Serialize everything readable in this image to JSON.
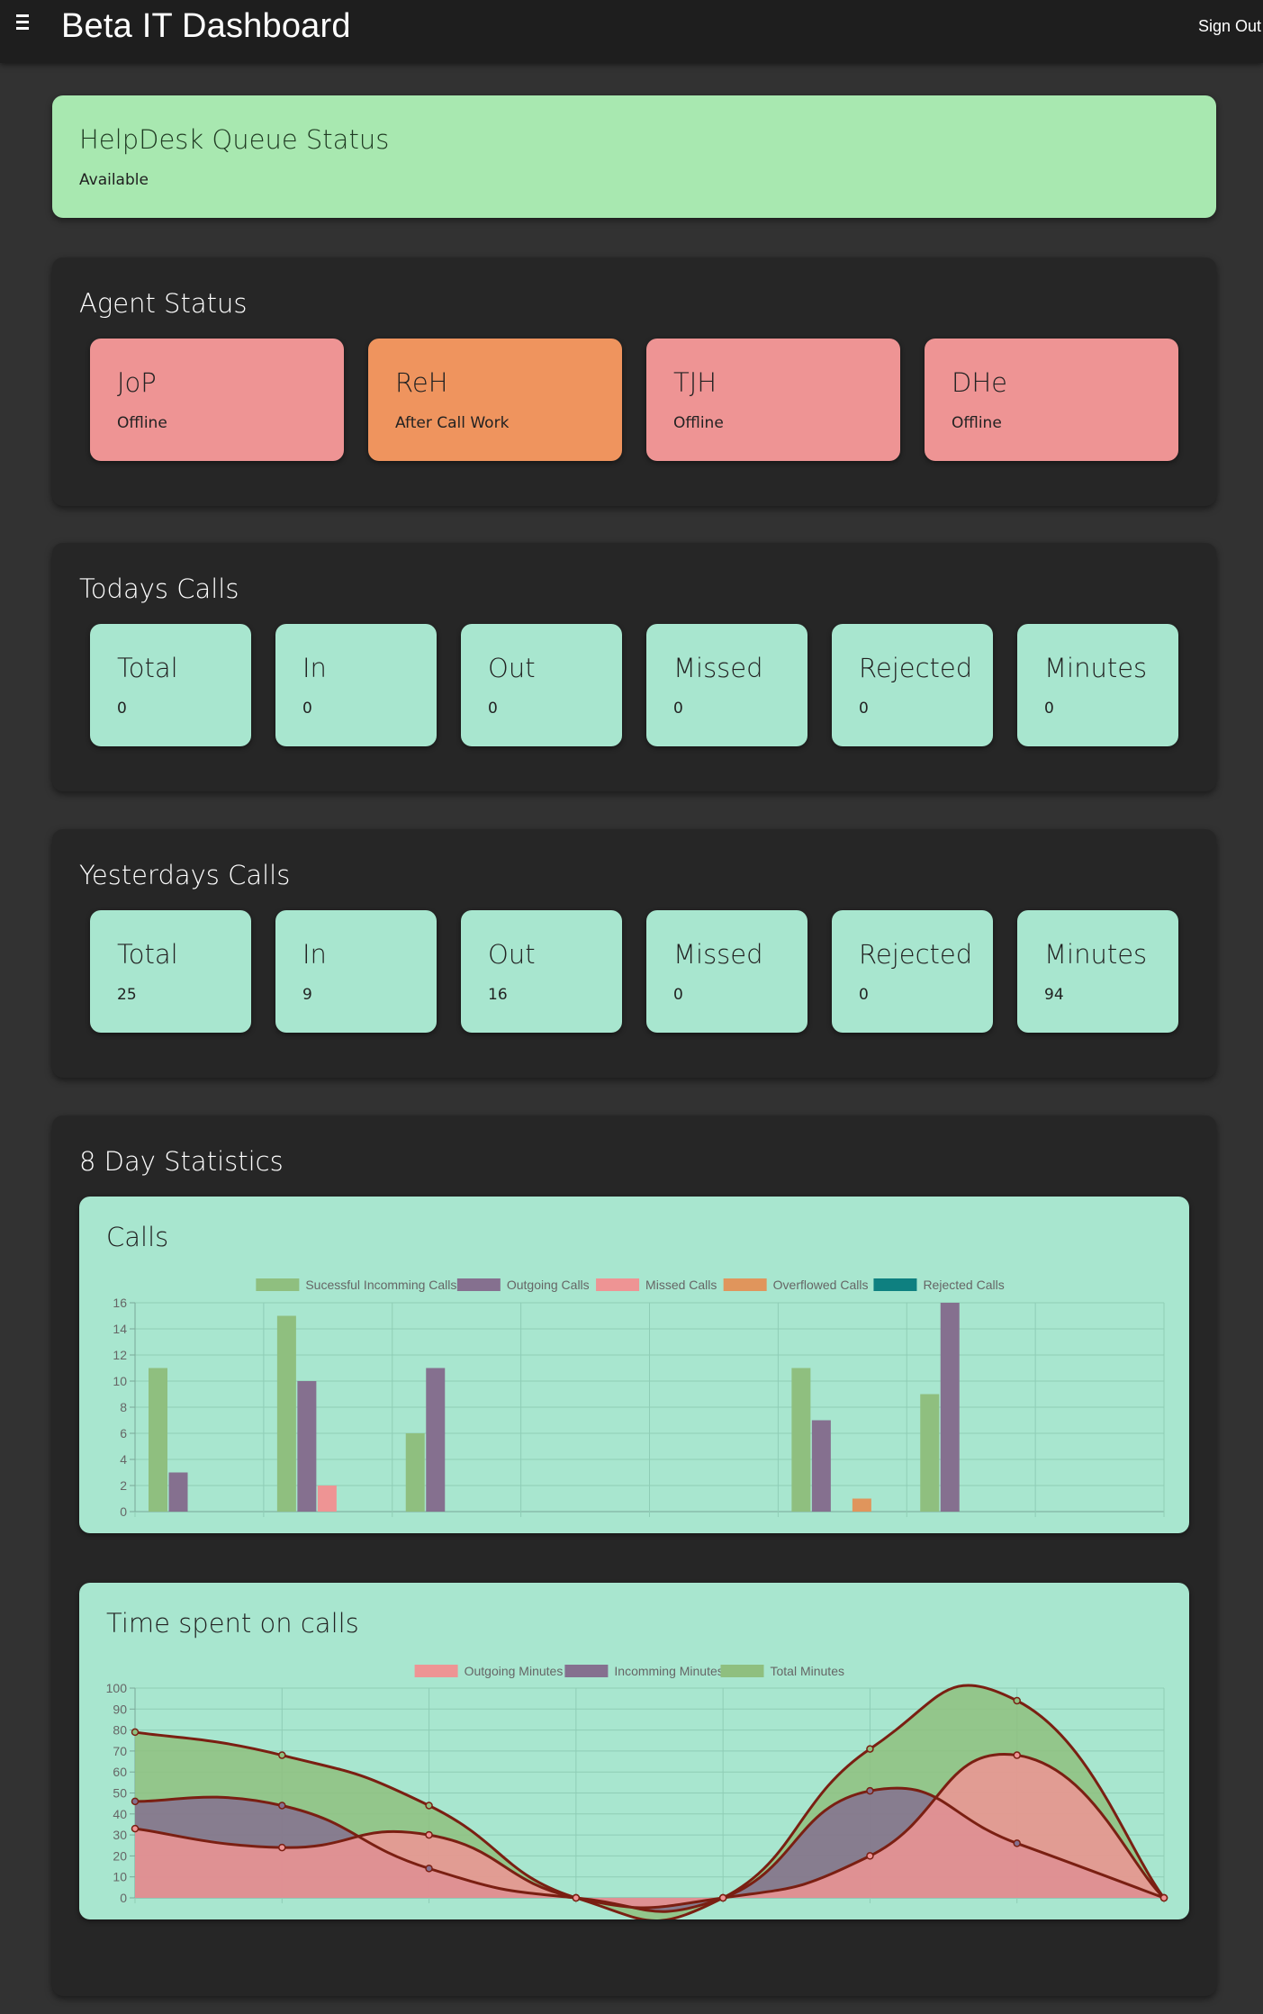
{
  "header": {
    "title": "Beta IT Dashboard",
    "signout_label": "Sign Out"
  },
  "queue": {
    "title": "HelpDesk Queue Status",
    "status": "Available"
  },
  "agents": {
    "title": "Agent Status",
    "items": [
      {
        "name": "JoP",
        "status": "Offline",
        "color": "#ee9494"
      },
      {
        "name": "ReH",
        "status": "After Call Work",
        "color": "#ef945e"
      },
      {
        "name": "TJH",
        "status": "Offline",
        "color": "#ee9494"
      },
      {
        "name": "DHe",
        "status": "Offline",
        "color": "#ee9494"
      }
    ]
  },
  "today": {
    "title": "Todays Calls",
    "items": [
      {
        "label": "Total",
        "value": "0"
      },
      {
        "label": "In",
        "value": "0"
      },
      {
        "label": "Out",
        "value": "0"
      },
      {
        "label": "Missed",
        "value": "0"
      },
      {
        "label": "Rejected",
        "value": "0"
      },
      {
        "label": "Minutes",
        "value": "0"
      }
    ]
  },
  "yesterday": {
    "title": "Yesterdays Calls",
    "items": [
      {
        "label": "Total",
        "value": "25"
      },
      {
        "label": "In",
        "value": "9"
      },
      {
        "label": "Out",
        "value": "16"
      },
      {
        "label": "Missed",
        "value": "0"
      },
      {
        "label": "Rejected",
        "value": "0"
      },
      {
        "label": "Minutes",
        "value": "94"
      }
    ]
  },
  "stats": {
    "title": "8 Day Statistics"
  },
  "chart_data": [
    {
      "type": "bar",
      "title": "Calls",
      "categories": [
        "",
        "",
        "",
        "",
        "",
        "",
        "",
        ""
      ],
      "ylim": [
        0,
        16
      ],
      "yticks": [
        0,
        2,
        4,
        6,
        8,
        10,
        12,
        14,
        16
      ],
      "legend_position": "top",
      "grid": true,
      "series": [
        {
          "name": "Sucessful Incomming Calls",
          "color": "#8fbf7f",
          "values": [
            11,
            15,
            6,
            0,
            0,
            11,
            9,
            0
          ]
        },
        {
          "name": "Outgoing Calls",
          "color": "#85708f",
          "values": [
            3,
            10,
            11,
            0,
            0,
            7,
            16,
            0
          ]
        },
        {
          "name": "Missed Calls",
          "color": "#ee9494",
          "values": [
            0,
            2,
            0,
            0,
            0,
            0,
            0,
            0
          ]
        },
        {
          "name": "Overflowed Calls",
          "color": "#e0955c",
          "values": [
            0,
            0,
            0,
            0,
            0,
            1,
            0,
            0
          ]
        },
        {
          "name": "Rejected Calls",
          "color": "#0e8080",
          "values": [
            0,
            0,
            0,
            0,
            0,
            0,
            0,
            0
          ]
        }
      ]
    },
    {
      "type": "area",
      "title": "Time spent on calls",
      "ylim": [
        0,
        100
      ],
      "yticks": [
        0,
        10,
        20,
        30,
        40,
        50,
        60,
        70,
        80,
        90,
        100
      ],
      "legend_position": "top",
      "grid": true,
      "series": [
        {
          "name": "Outgoing Minutes",
          "color": "#ee9494",
          "values": [
            33,
            24,
            30,
            0,
            0,
            20,
            68,
            0
          ]
        },
        {
          "name": "Incomming Minutes",
          "color": "#85708f",
          "values": [
            46,
            44,
            14,
            0,
            0,
            51,
            26,
            0
          ]
        },
        {
          "name": "Total Minutes",
          "color": "#8fbf7f",
          "values": [
            79,
            68,
            44,
            0,
            0,
            71,
            94,
            0
          ]
        }
      ]
    }
  ]
}
